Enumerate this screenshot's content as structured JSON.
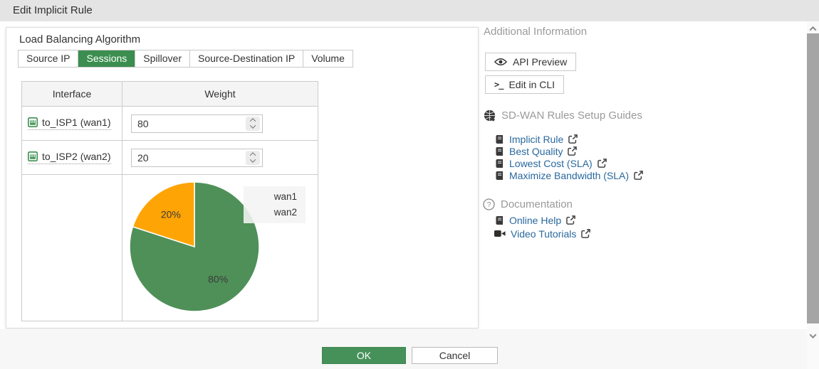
{
  "window": {
    "title": "Edit Implicit Rule"
  },
  "panel": {
    "section_title": "Load Balancing Algorithm",
    "tabs": {
      "active": "Sessions",
      "items": [
        "Source IP",
        "Sessions",
        "Spillover",
        "Source-Destination IP",
        "Volume"
      ]
    }
  },
  "table": {
    "headers": {
      "interface": "Interface",
      "weight": "Weight"
    },
    "rows": [
      {
        "interface": "to_ISP1 (wan1)",
        "weight": "80"
      },
      {
        "interface": "to_ISP2 (wan2)",
        "weight": "20"
      }
    ]
  },
  "chart_data": {
    "type": "pie",
    "start_angle": "top",
    "direction": "clockwise",
    "legend_position": "top-right",
    "slices": [
      {
        "label": "wan1",
        "value": 80,
        "display": "80%",
        "color": "#4f9058"
      },
      {
        "label": "wan2",
        "value": 20,
        "display": "20%",
        "color": "#ffa405"
      }
    ]
  },
  "sidebar": {
    "title": "Additional Information",
    "buttons": [
      {
        "label": "API Preview",
        "icon": "eye-icon"
      },
      {
        "label": "Edit in CLI",
        "icon": "terminal-icon"
      }
    ],
    "guides": {
      "title": "SD-WAN Rules Setup Guides",
      "links": [
        "Implicit Rule",
        "Best Quality",
        "Lowest Cost (SLA)",
        "Maximize Bandwidth (SLA)"
      ]
    },
    "docs": {
      "title": "Documentation",
      "links": [
        "Online Help",
        "Video Tutorials"
      ]
    }
  },
  "footer": {
    "ok_label": "OK",
    "cancel_label": "Cancel"
  },
  "icons": {
    "terminal_glyph": ">_"
  },
  "colors": {
    "titlebar_bg": "#e4e4e4",
    "active_tab_green": "#3b8e4f",
    "ok_green": "#46915a",
    "pie_green": "#4f9058",
    "pie_orange": "#ffa405",
    "link_blue": "#29689d",
    "muted_header": "#9a9a9a"
  }
}
